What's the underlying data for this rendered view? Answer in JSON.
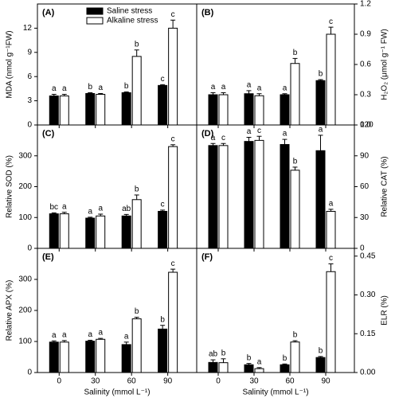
{
  "chart_data": [
    {
      "type": "bar",
      "label": "(A)",
      "ylabel": "MDA (nmol g⁻¹FW)",
      "axis_side": "left",
      "legend": "upper-center",
      "ylim": [
        0,
        15
      ],
      "yticks": [
        0,
        3,
        6,
        9,
        12
      ],
      "series": [
        {
          "name": "Saline stress",
          "color": "#000000",
          "values": [
            3.6,
            3.9,
            4.0,
            4.9
          ],
          "errors": [
            0.2,
            0.1,
            0.1,
            0.1
          ],
          "letters": [
            "a",
            "b",
            "b",
            "c"
          ]
        },
        {
          "name": "Alkaline stress",
          "color": "#ffffff",
          "values": [
            3.6,
            3.8,
            8.5,
            12.0
          ],
          "errors": [
            0.2,
            0.1,
            0.8,
            1.0
          ],
          "letters": [
            "a",
            "a",
            "b",
            "c"
          ]
        }
      ]
    },
    {
      "type": "bar",
      "label": "(B)",
      "ylabel": "H₂O₂ (μmol g⁻¹ FW)",
      "axis_side": "right",
      "ylim": [
        0,
        1.2
      ],
      "yticks": [
        {
          "value": 0,
          "label": "0.0"
        },
        0.3,
        0.6,
        0.9,
        1.2
      ],
      "series": [
        {
          "color": "#000000",
          "values": [
            0.3,
            0.31,
            0.3,
            0.44
          ],
          "errors": [
            0.02,
            0.03,
            0.01,
            0.01
          ],
          "letters": [
            "a",
            "a",
            "a",
            "b"
          ]
        },
        {
          "color": "#ffffff",
          "values": [
            0.3,
            0.29,
            0.61,
            0.9
          ],
          "errors": [
            0.02,
            0.02,
            0.05,
            0.07
          ],
          "letters": [
            "a",
            "a",
            "b",
            "c"
          ]
        }
      ]
    },
    {
      "type": "bar",
      "label": "(C)",
      "ylabel": "Relative SOD (%)",
      "axis_side": "left",
      "ylim": [
        0,
        400
      ],
      "yticks": [
        0,
        100,
        200,
        300
      ],
      "series": [
        {
          "color": "#000000",
          "values": [
            112,
            98,
            105,
            120
          ],
          "errors": [
            3,
            3,
            5,
            4
          ],
          "letters": [
            "bc",
            "a",
            "ab",
            "c"
          ]
        },
        {
          "color": "#ffffff",
          "values": [
            112,
            105,
            158,
            330
          ],
          "errors": [
            5,
            6,
            15,
            6
          ],
          "letters": [
            "a",
            "a",
            "b",
            "c"
          ]
        }
      ]
    },
    {
      "type": "bar",
      "label": "(D)",
      "ylabel": "Relative CAT (%)",
      "axis_side": "right",
      "ylim": [
        0,
        120
      ],
      "yticks": [
        0,
        30,
        60,
        90,
        120
      ],
      "series": [
        {
          "color": "#000000",
          "values": [
            100,
            104,
            101,
            95
          ],
          "errors": [
            2,
            4,
            5,
            15
          ],
          "letters": [
            "a",
            "a",
            "a",
            "a"
          ]
        },
        {
          "color": "#ffffff",
          "values": [
            100,
            105,
            76,
            36
          ],
          "errors": [
            2,
            4,
            3,
            2
          ],
          "letters": [
            "c",
            "c",
            "b",
            "a"
          ]
        }
      ]
    },
    {
      "type": "bar",
      "label": "(E)",
      "ylabel": "Relative APX (%)",
      "axis_side": "left",
      "xlabel": "Salinity (mmol L⁻¹)",
      "categories": [
        "0",
        "30",
        "60",
        "90"
      ],
      "ylim": [
        0,
        400
      ],
      "yticks": [
        0,
        100,
        200,
        300
      ],
      "series": [
        {
          "color": "#000000",
          "values": [
            98,
            101,
            90,
            140
          ],
          "errors": [
            4,
            3,
            8,
            12
          ],
          "letters": [
            "a",
            "a",
            "a",
            "b"
          ]
        },
        {
          "color": "#ffffff",
          "values": [
            98,
            107,
            173,
            323
          ],
          "errors": [
            5,
            3,
            5,
            10
          ],
          "letters": [
            "a",
            "a",
            "b",
            "c"
          ]
        }
      ]
    },
    {
      "type": "bar",
      "label": "(F)",
      "ylabel": "ELR (%)",
      "axis_side": "right",
      "xlabel": "Salinity (mmol L⁻¹)",
      "categories": [
        "0",
        "30",
        "60",
        "90"
      ],
      "ylim": [
        0,
        0.48
      ],
      "yticks": [
        {
          "value": 0,
          "label": "0.00"
        },
        0.15,
        {
          "value": 0.3,
          "label": "0.30"
        },
        0.45
      ],
      "series": [
        {
          "color": "#000000",
          "values": [
            0.039,
            0.03,
            0.03,
            0.058
          ],
          "errors": [
            0.01,
            0.005,
            0.003,
            0.004
          ],
          "letters": [
            "ab",
            "b",
            "b",
            "b"
          ]
        },
        {
          "color": "#ffffff",
          "values": [
            0.038,
            0.015,
            0.118,
            0.39
          ],
          "errors": [
            0.015,
            0.004,
            0.005,
            0.03
          ],
          "letters": [
            "b",
            "a",
            "b",
            "c"
          ]
        }
      ]
    }
  ]
}
